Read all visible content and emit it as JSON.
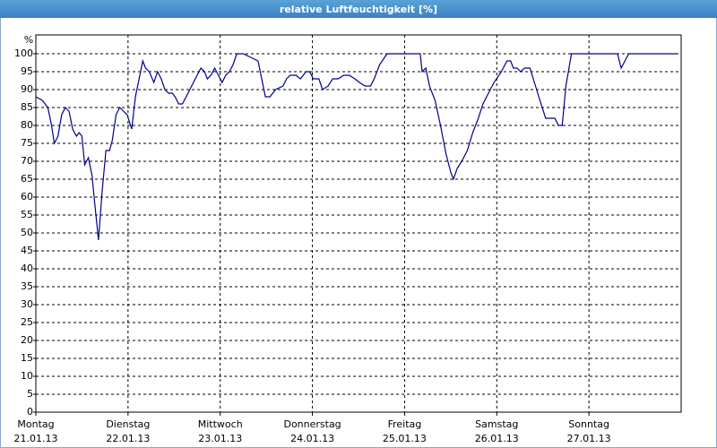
{
  "chart_data": {
    "type": "line",
    "title": "relative Luftfeuchtigkeit [%]",
    "y_unit": "%",
    "color": "#00008b",
    "grid": true,
    "xlim": [
      0,
      7
    ],
    "ylim": [
      0,
      100
    ],
    "xticks": [
      {
        "value": 0,
        "label": "Montag",
        "date": "21.01.13"
      },
      {
        "value": 1,
        "label": "Dienstag",
        "date": "22.01.13"
      },
      {
        "value": 2,
        "label": "Mittwoch",
        "date": "23.01.13"
      },
      {
        "value": 3,
        "label": "Donnerstag",
        "date": "24.01.13"
      },
      {
        "value": 4,
        "label": "Freitag",
        "date": "25.01.13"
      },
      {
        "value": 5,
        "label": "Samstag",
        "date": "26.01.13"
      },
      {
        "value": 6,
        "label": "Sonntag",
        "date": "27.01.13"
      }
    ],
    "yticks": [
      0,
      5,
      10,
      15,
      20,
      25,
      30,
      35,
      40,
      45,
      50,
      55,
      60,
      65,
      70,
      75,
      80,
      85,
      90,
      95,
      100
    ],
    "x": [
      0,
      0.07,
      0.13,
      0.17,
      0.2,
      0.24,
      0.28,
      0.32,
      0.36,
      0.4,
      0.44,
      0.47,
      0.5,
      0.53,
      0.57,
      0.61,
      0.64,
      0.68,
      0.72,
      0.76,
      0.8,
      0.83,
      0.87,
      0.91,
      0.95,
      0.99,
      1.04,
      1.08,
      1.12,
      1.16,
      1.19,
      1.23,
      1.28,
      1.32,
      1.36,
      1.4,
      1.44,
      1.48,
      1.51,
      1.55,
      1.59,
      1.63,
      1.67,
      1.73,
      1.79,
      1.83,
      1.86,
      1.9,
      1.94,
      1.98,
      2.02,
      2.06,
      2.1,
      2.14,
      2.18,
      2.25,
      2.33,
      2.41,
      2.45,
      2.49,
      2.54,
      2.6,
      2.68,
      2.72,
      2.76,
      2.82,
      2.87,
      2.93,
      2.97,
      3.01,
      3.07,
      3.11,
      3.17,
      3.22,
      3.28,
      3.34,
      3.4,
      3.46,
      3.51,
      3.57,
      3.63,
      3.67,
      3.73,
      3.81,
      3.88,
      4.08,
      4.17,
      4.19,
      4.23,
      4.27,
      4.33,
      4.39,
      4.45,
      4.5,
      4.53,
      4.57,
      4.62,
      4.68,
      4.74,
      4.8,
      4.85,
      4.91,
      4.97,
      5.05,
      5.11,
      5.15,
      5.18,
      5.22,
      5.26,
      5.3,
      5.36,
      5.42,
      5.48,
      5.53,
      5.59,
      5.63,
      5.67,
      5.71,
      5.75,
      5.81,
      6.02,
      6.31,
      6.35,
      6.39,
      6.43,
      6.8,
      6.96
    ],
    "values": [
      88,
      87,
      85,
      80,
      75,
      77,
      83,
      85,
      84,
      79,
      77,
      78,
      77,
      69,
      71,
      66,
      58,
      48,
      62,
      73,
      73,
      76,
      83,
      85,
      84,
      83,
      79,
      88,
      93,
      98,
      96,
      95,
      92,
      95,
      93,
      90,
      89,
      89,
      88,
      86,
      86,
      88,
      90,
      93,
      96,
      95,
      93,
      94,
      96,
      94,
      92,
      94,
      95,
      97,
      100,
      100,
      99,
      98,
      93,
      88,
      88,
      90,
      91,
      93,
      94,
      94,
      93,
      95,
      95,
      93,
      93,
      90,
      91,
      93,
      93,
      94,
      94,
      93,
      92,
      91,
      91,
      93,
      97,
      100,
      100,
      100,
      100,
      95,
      96,
      91,
      87,
      80,
      72,
      67,
      65,
      68,
      70,
      73,
      78,
      82,
      86,
      89,
      92,
      95,
      98,
      98,
      96,
      96,
      95,
      96,
      96,
      91,
      86,
      82,
      82,
      82,
      80,
      80,
      91,
      100,
      100,
      100,
      96,
      98,
      100,
      100,
      100
    ]
  }
}
